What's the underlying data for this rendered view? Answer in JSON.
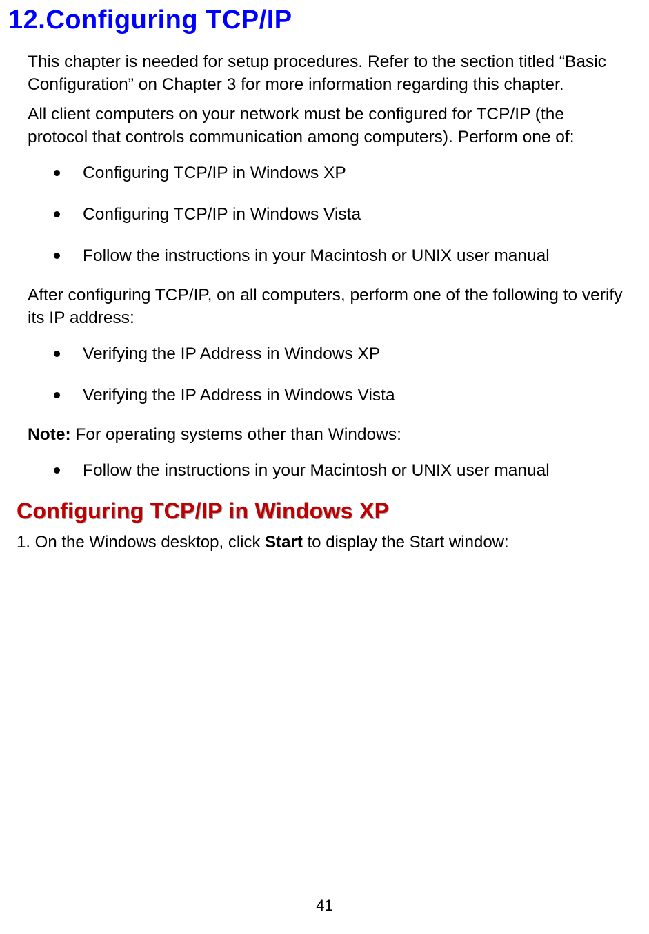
{
  "chapter": {
    "title": "12.Configuring TCP/IP"
  },
  "paragraphs": {
    "intro1": "This chapter is needed for setup procedures. Refer to the section titled “Basic Configuration” on Chapter 3 for more information regarding this chapter.",
    "intro2": "All client computers on your network must be configured for TCP/IP (the protocol that controls communication among computers). Perform one of:",
    "after": "After configuring TCP/IP, on all computers, perform one of the following to verify its IP address:",
    "note_label": "Note:",
    "note_rest": " For operating systems other than Windows:"
  },
  "bullets1": {
    "0": "Configuring TCP/IP in Windows XP",
    "1": "Configuring TCP/IP in Windows Vista",
    "2": "Follow the instructions in your Macintosh or UNIX user manual"
  },
  "bullets2": {
    "0": "Verifying the IP Address in Windows XP",
    "1": "Verifying the IP Address in Windows Vista"
  },
  "bullets3": {
    "0": "Follow the instructions in your Macintosh or UNIX user manual"
  },
  "section": {
    "heading": "Configuring TCP/IP in Windows XP",
    "step1_pre": "1. On the Windows desktop, click ",
    "step1_bold": "Start",
    "step1_post": " to display the Start window:"
  },
  "page_number": "41",
  "styling": {
    "title_color": "#0000ff",
    "heading_color": "#c00000",
    "body_color": "#000000",
    "background_color": "#ffffff",
    "title_fontsize": 38,
    "body_fontsize": 24.5,
    "section_heading_fontsize": 32,
    "step_fontsize": 24,
    "bullet_diameter": 9,
    "page_number_fontsize": 22
  }
}
